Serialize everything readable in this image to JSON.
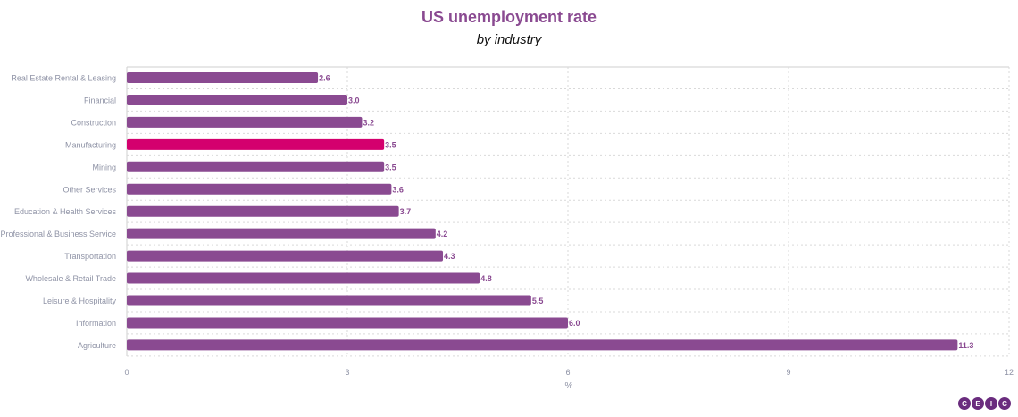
{
  "chart_data": {
    "type": "bar",
    "orientation": "horizontal",
    "title": "US unemployment rate",
    "subtitle": "by industry",
    "xlabel": "%",
    "ylabel": "",
    "xlim": [
      0,
      12
    ],
    "xticks": [
      0,
      3,
      6,
      9,
      12
    ],
    "grid": true,
    "categories": [
      "Real Estate Rental & Leasing",
      "Financial",
      "Construction",
      "Manufacturing",
      "Mining",
      "Other Services",
      "Education & Health Services",
      "Professional & Business Service",
      "Transportation",
      "Wholesale & Retail Trade",
      "Leisure & Hospitality",
      "Information",
      "Agriculture"
    ],
    "values": [
      2.6,
      3.0,
      3.2,
      3.5,
      3.5,
      3.6,
      3.7,
      4.2,
      4.3,
      4.8,
      5.5,
      6.0,
      11.3
    ],
    "value_labels": [
      "2.6",
      "3.0",
      "3.2",
      "3.5",
      "3.5",
      "3.6",
      "3.7",
      "4.2",
      "4.3",
      "4.8",
      "5.5",
      "6.0",
      "11.3"
    ],
    "highlight_category": "Manufacturing",
    "colors": {
      "bar": "#8a4a91",
      "highlight": "#d4006e",
      "label": "#8a4a91",
      "axis_text": "#8f93a6",
      "grid": "#d9d9d9"
    }
  },
  "logo": {
    "letters": [
      "C",
      "E",
      "I",
      "C"
    ]
  }
}
